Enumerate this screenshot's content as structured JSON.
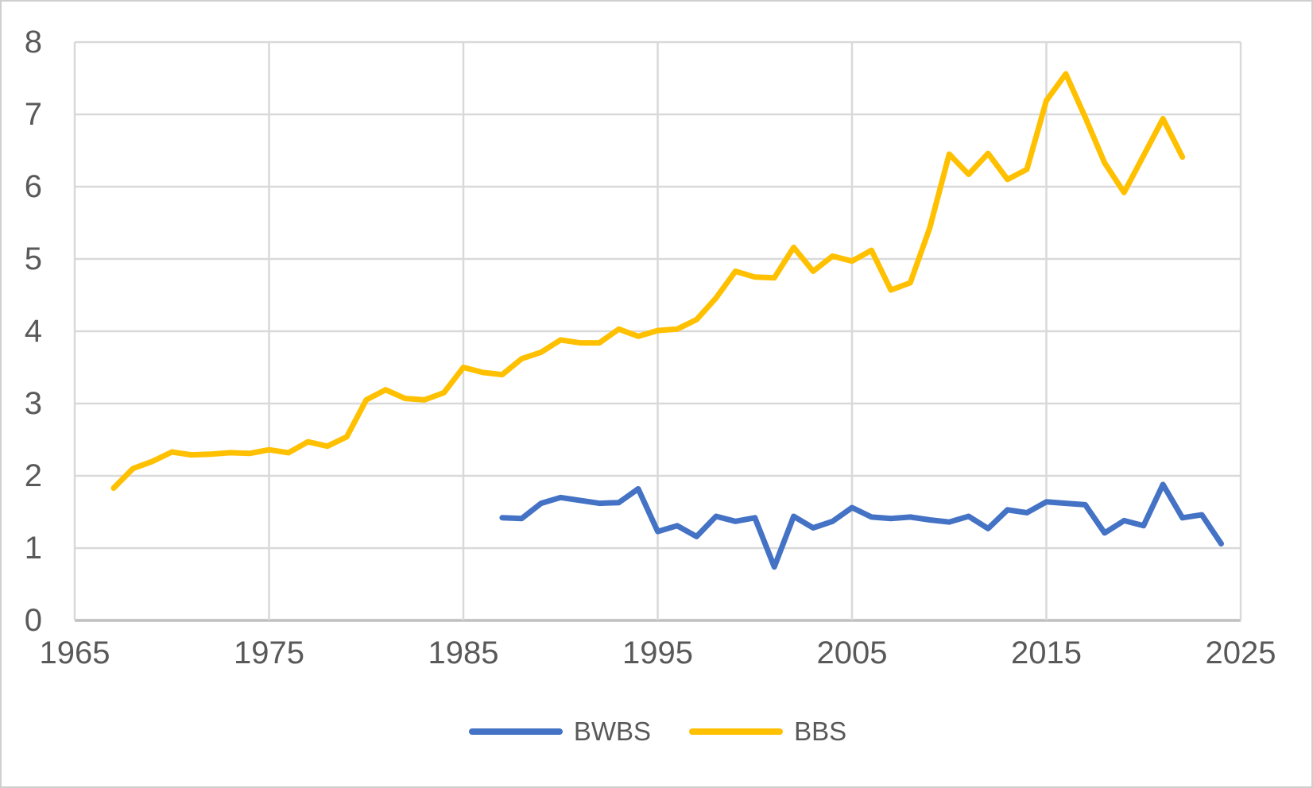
{
  "figure": {
    "description": "Line chart comparing two survey index series over years",
    "background": "#FFFFFF",
    "border_color": "#D0CECE"
  },
  "style": {
    "grid_color": "#D9D9D9",
    "axis_line_color": "#BFBFBF",
    "tick_label_color": "#595959",
    "series_stroke_width": 7
  },
  "legend": {
    "items": [
      {
        "label": "BWBS",
        "color": "#4472C4"
      },
      {
        "label": "BBS",
        "color": "#FFC000"
      }
    ]
  },
  "chart_data": {
    "type": "line",
    "title": "",
    "xlabel": "",
    "ylabel": "",
    "xlim": [
      1965,
      2025
    ],
    "ylim": [
      0,
      8
    ],
    "x_ticks": [
      1965,
      1975,
      1985,
      1995,
      2005,
      2015,
      2025
    ],
    "y_ticks": [
      0,
      1,
      2,
      3,
      4,
      5,
      6,
      7,
      8
    ],
    "grid": true,
    "legend_position": "bottom-center",
    "series": [
      {
        "name": "BBS",
        "color": "#FFC000",
        "start_year": 1967,
        "end_year": 2022,
        "values": [
          1.83,
          2.1,
          2.2,
          2.33,
          2.29,
          2.3,
          2.32,
          2.31,
          2.36,
          2.32,
          2.47,
          2.41,
          2.54,
          3.05,
          3.19,
          3.07,
          3.05,
          3.15,
          3.5,
          3.43,
          3.4,
          3.62,
          3.71,
          3.88,
          3.84,
          3.84,
          4.03,
          3.93,
          4.01,
          4.03,
          4.16,
          4.46,
          4.83,
          4.75,
          4.74,
          5.16,
          4.83,
          5.04,
          4.97,
          5.12,
          4.57,
          4.67,
          5.43,
          6.45,
          6.17,
          6.46,
          6.1,
          6.24,
          7.19,
          7.56,
          6.96,
          6.33,
          5.92,
          6.43,
          6.94,
          6.41
        ]
      },
      {
        "name": "BWBS",
        "color": "#4472C4",
        "start_year": 1987,
        "end_year": 2024,
        "values": [
          1.42,
          1.41,
          1.62,
          1.7,
          1.66,
          1.62,
          1.63,
          1.82,
          1.23,
          1.31,
          1.16,
          1.44,
          1.37,
          1.42,
          0.74,
          1.44,
          1.28,
          1.37,
          1.56,
          1.43,
          1.41,
          1.43,
          1.39,
          1.36,
          1.44,
          1.27,
          1.53,
          1.49,
          1.64,
          1.62,
          1.6,
          1.21,
          1.38,
          1.31,
          1.88,
          1.42,
          1.46,
          1.06
        ]
      }
    ]
  }
}
